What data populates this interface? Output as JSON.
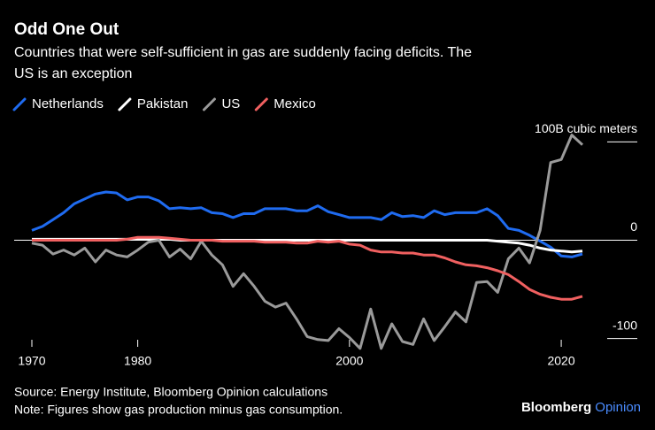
{
  "chart_data": {
    "type": "line",
    "title": "Odd One Out",
    "subtitle": "Countries that were self-sufficient in gas are suddenly facing deficits. The US is an exception",
    "x": [
      1970,
      1971,
      1972,
      1973,
      1974,
      1975,
      1976,
      1977,
      1978,
      1979,
      1980,
      1981,
      1982,
      1983,
      1984,
      1985,
      1986,
      1987,
      1988,
      1989,
      1990,
      1991,
      1992,
      1993,
      1994,
      1995,
      1996,
      1997,
      1998,
      1999,
      2000,
      2001,
      2002,
      2003,
      2004,
      2005,
      2006,
      2007,
      2008,
      2009,
      2010,
      2011,
      2012,
      2013,
      2014,
      2015,
      2016,
      2017,
      2018,
      2019,
      2020,
      2021,
      2022
    ],
    "series": [
      {
        "name": "Netherlands",
        "color": "#1f6bf0",
        "values": [
          10,
          14,
          21,
          28,
          37,
          42,
          47,
          49,
          48,
          41,
          44,
          44,
          40,
          32,
          33,
          32,
          33,
          28,
          27,
          23,
          27,
          27,
          32,
          32,
          32,
          30,
          30,
          35,
          29,
          26,
          23,
          23,
          23,
          21,
          28,
          24,
          25,
          23,
          30,
          26,
          28,
          28,
          28,
          32,
          25,
          12,
          10,
          5,
          -1,
          -7,
          -16,
          -17,
          -14
        ]
      },
      {
        "name": "Pakistan",
        "color": "#ffffff",
        "values": [
          1,
          1,
          1,
          1,
          1,
          1,
          1,
          1,
          1,
          1,
          1,
          1,
          1,
          1,
          0,
          0,
          0,
          0,
          0,
          0,
          0,
          0,
          0,
          0,
          0,
          0,
          0,
          0,
          0,
          0,
          0,
          0,
          0,
          0,
          0,
          0,
          0,
          0,
          0,
          0,
          0,
          0,
          0,
          0,
          -1,
          -2,
          -3,
          -5,
          -8,
          -10,
          -11,
          -12,
          -11
        ]
      },
      {
        "name": "US",
        "color": "#9a9a9a",
        "values": [
          -3,
          -5,
          -14,
          -10,
          -15,
          -8,
          -22,
          -10,
          -15,
          -17,
          -10,
          -2,
          0,
          -17,
          -9,
          -19,
          -1,
          -15,
          -25,
          -47,
          -34,
          -47,
          -62,
          -68,
          -64,
          -80,
          -98,
          -101,
          -102,
          -90,
          -99,
          -110,
          -70,
          -110,
          -85,
          -103,
          -106,
          -80,
          -102,
          -88,
          -73,
          -83,
          -43,
          -42,
          -53,
          -19,
          -8,
          -23,
          10,
          79,
          82,
          107,
          97
        ]
      },
      {
        "name": "Mexico",
        "color": "#f06060",
        "values": [
          0,
          0,
          0,
          0,
          0,
          0,
          0,
          0,
          0,
          1,
          3,
          3,
          3,
          2,
          1,
          0,
          0,
          0,
          -1,
          -1,
          -1,
          -1,
          -2,
          -2,
          -2,
          -3,
          -3,
          -1,
          -2,
          -1,
          -4,
          -5,
          -10,
          -12,
          -12,
          -13,
          -13,
          -15,
          -15,
          -18,
          -22,
          -25,
          -26,
          -28,
          -31,
          -35,
          -42,
          -50,
          -55,
          -58,
          -60,
          -60,
          -57
        ]
      }
    ],
    "xlim": [
      1970,
      2022
    ],
    "xticks": [
      1970,
      1980,
      2000,
      2020
    ],
    "ylim": [
      -112,
      112
    ],
    "yticks": [
      {
        "value": 100,
        "label": "100B cubic meters"
      },
      0,
      -100
    ],
    "source": "Source: Energy Institute, Bloomberg Opinion calculations",
    "note": "Note: Figures show gas production minus gas consumption.",
    "brand": "Bloomberg",
    "brand_suffix": "Opinion"
  }
}
